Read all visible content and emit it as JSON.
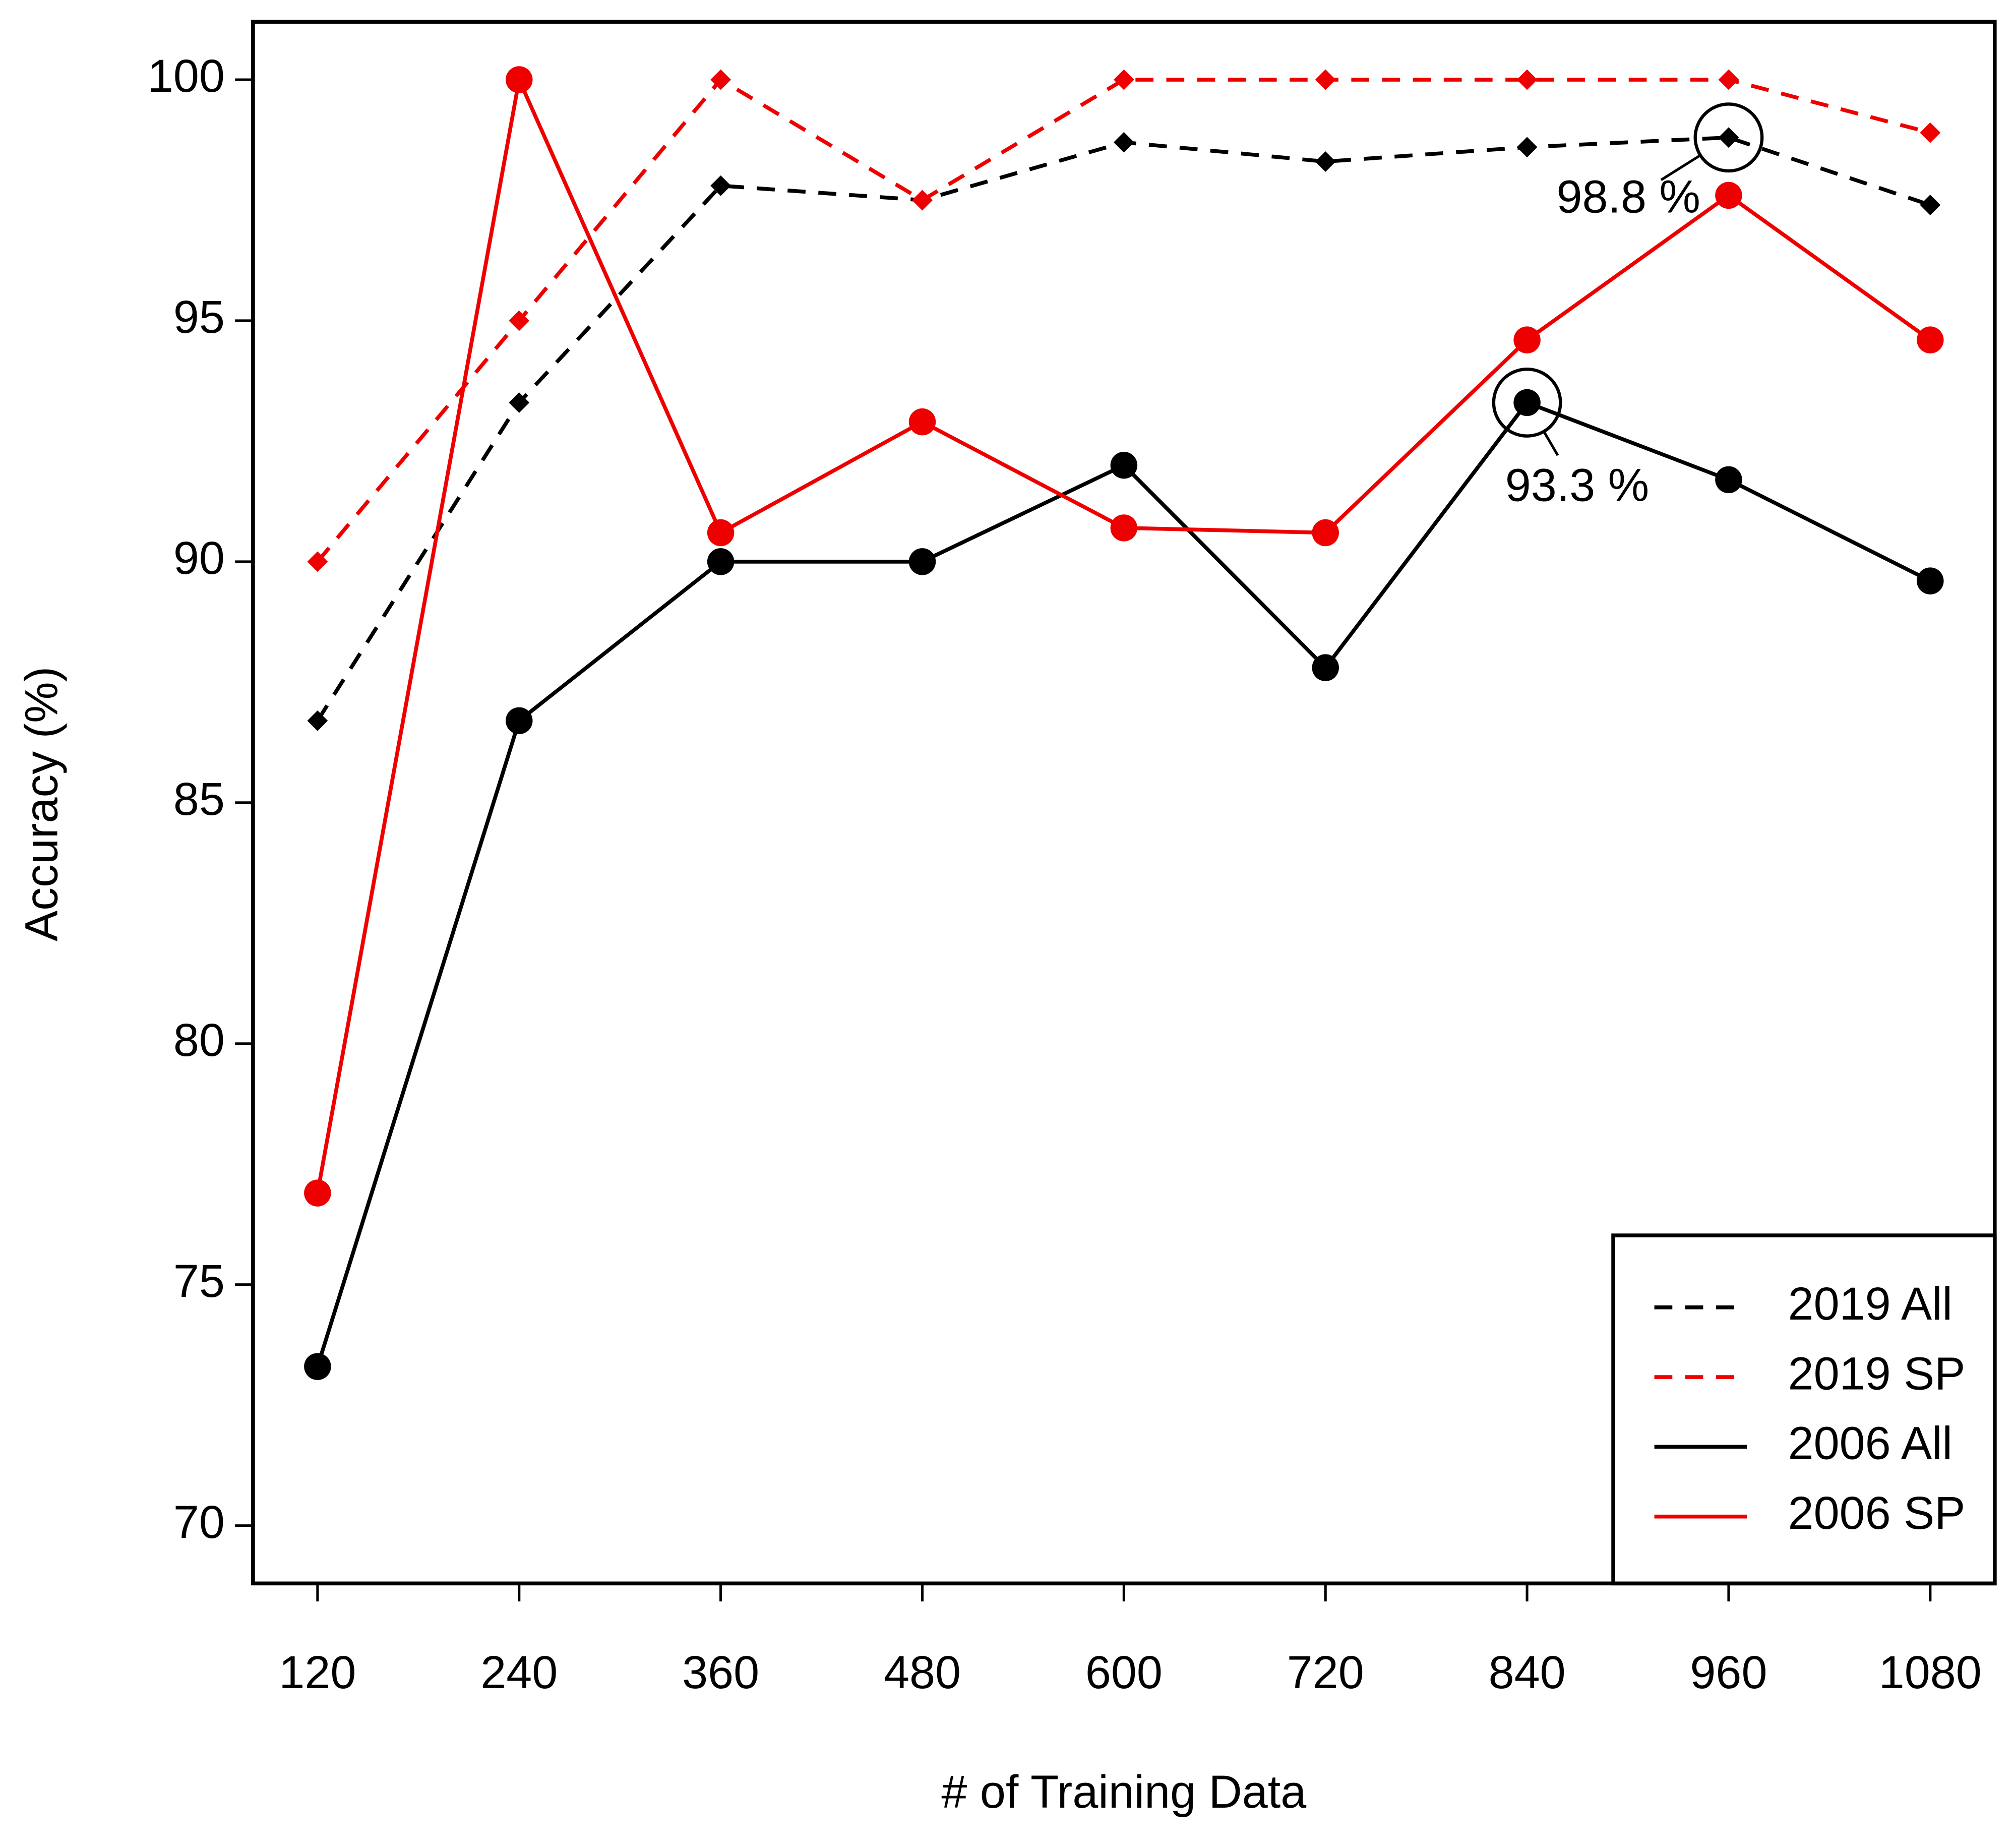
{
  "chart_data": {
    "type": "line",
    "x_label": "# of Training Data",
    "y_label": "Accuracy (%)",
    "x": [
      120,
      240,
      360,
      480,
      600,
      720,
      840,
      960,
      1080
    ],
    "series": [
      {
        "name": "2019 All",
        "color": "#000000",
        "dash": true,
        "marker": "diamond",
        "values": [
          86.7,
          93.3,
          97.8,
          97.5,
          98.7,
          98.3,
          98.6,
          98.8,
          97.4
        ]
      },
      {
        "name": "2019 SP",
        "color": "#ee0000",
        "dash": true,
        "marker": "diamond",
        "values": [
          90,
          95,
          100,
          97.5,
          100,
          100,
          100,
          100,
          98.9
        ]
      },
      {
        "name": "2006 All",
        "color": "#000000",
        "dash": false,
        "marker": "circle",
        "values": [
          73.3,
          86.7,
          90,
          90,
          92,
          87.8,
          93.3,
          91.7,
          89.6
        ]
      },
      {
        "name": "2006 SP",
        "color": "#ee0000",
        "dash": false,
        "marker": "circle",
        "values": [
          76.9,
          100,
          90.6,
          92.9,
          90.7,
          90.6,
          94.6,
          97.6,
          94.6
        ]
      }
    ],
    "annotations": [
      {
        "text": "98.8 %",
        "x": 960,
        "y": 98.8
      },
      {
        "text": "93.3 %",
        "x": 840,
        "y": 93.3
      }
    ],
    "xlim": [
      81.6,
      1118.4
    ],
    "ylim": [
      68.8,
      101.2
    ],
    "xticks": [
      120,
      240,
      360,
      480,
      600,
      720,
      840,
      960,
      1080
    ],
    "yticks": [
      70,
      75,
      80,
      85,
      90,
      95,
      100
    ],
    "legend": "bottom-right"
  }
}
